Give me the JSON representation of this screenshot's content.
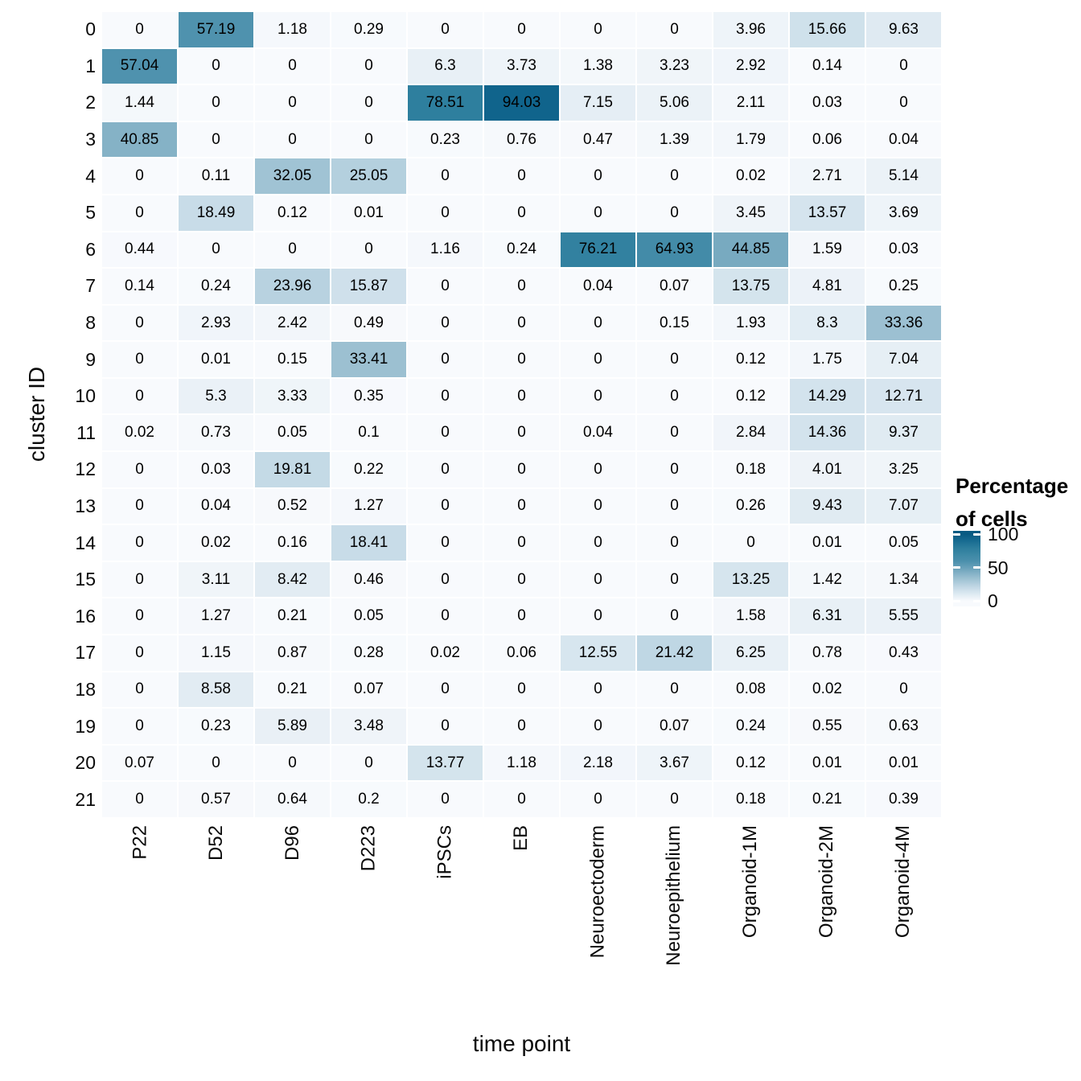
{
  "legend": {
    "title_lines": [
      "Percentage",
      "of cells"
    ],
    "tick_labels": [
      "100",
      "50",
      "0"
    ]
  },
  "chart_data": {
    "type": "heatmap",
    "title": "",
    "xlabel": "time point",
    "ylabel": "cluster ID",
    "legend_title": "Percentage of cells",
    "legend_position": "right",
    "legend_ticks": [
      100,
      50,
      0
    ],
    "value_range": [
      0,
      100
    ],
    "grid_gap_color": "#ffffff",
    "text_color": "#000000",
    "color_stops": [
      {
        "value": 0,
        "color": "#f8fafd"
      },
      {
        "value": 18.5,
        "color": "#c8dce8"
      },
      {
        "value": 41,
        "color": "#85b2c6"
      },
      {
        "value": 57,
        "color": "#4f92ae"
      },
      {
        "value": 78.5,
        "color": "#2e7f9e"
      },
      {
        "value": 94,
        "color": "#10648c"
      },
      {
        "value": 100,
        "color": "#085a82"
      }
    ],
    "x": [
      "P22",
      "D52",
      "D96",
      "D223",
      "iPSCs",
      "EB",
      "Neuroectoderm",
      "Neuroepithelium",
      "Organoid-1M",
      "Organoid-2M",
      "Organoid-4M"
    ],
    "y": [
      "0",
      "1",
      "2",
      "3",
      "4",
      "5",
      "6",
      "7",
      "8",
      "9",
      "10",
      "11",
      "12",
      "13",
      "14",
      "15",
      "16",
      "17",
      "18",
      "19",
      "20",
      "21"
    ],
    "values": [
      [
        0,
        57.19,
        1.18,
        0.29,
        0,
        0,
        0,
        0,
        3.96,
        15.66,
        9.63
      ],
      [
        57.04,
        0,
        0,
        0,
        6.3,
        3.73,
        1.38,
        3.23,
        2.92,
        0.14,
        0
      ],
      [
        1.44,
        0,
        0,
        0,
        78.51,
        94.03,
        7.15,
        5.06,
        2.11,
        0.03,
        0
      ],
      [
        40.85,
        0,
        0,
        0,
        0.23,
        0.76,
        0.47,
        1.39,
        1.79,
        0.06,
        0.04
      ],
      [
        0,
        0.11,
        32.05,
        25.05,
        0,
        0,
        0,
        0,
        0.02,
        2.71,
        5.14
      ],
      [
        0,
        18.49,
        0.12,
        0.01,
        0,
        0,
        0,
        0,
        3.45,
        13.57,
        3.69
      ],
      [
        0.44,
        0,
        0,
        0,
        1.16,
        0.24,
        76.21,
        64.93,
        44.85,
        1.59,
        0.03
      ],
      [
        0.14,
        0.24,
        23.96,
        15.87,
        0,
        0,
        0.04,
        0.07,
        13.75,
        4.81,
        0.25
      ],
      [
        0,
        2.93,
        2.42,
        0.49,
        0,
        0,
        0,
        0.15,
        1.93,
        8.3,
        33.36
      ],
      [
        0,
        0.01,
        0.15,
        33.41,
        0,
        0,
        0,
        0,
        0.12,
        1.75,
        7.04
      ],
      [
        0,
        5.3,
        3.33,
        0.35,
        0,
        0,
        0,
        0,
        0.12,
        14.29,
        12.71
      ],
      [
        0.02,
        0.73,
        0.05,
        0.1,
        0,
        0,
        0.04,
        0,
        2.84,
        14.36,
        9.37
      ],
      [
        0,
        0.03,
        19.81,
        0.22,
        0,
        0,
        0,
        0,
        0.18,
        4.01,
        3.25
      ],
      [
        0,
        0.04,
        0.52,
        1.27,
        0,
        0,
        0,
        0,
        0.26,
        9.43,
        7.07
      ],
      [
        0,
        0.02,
        0.16,
        18.41,
        0,
        0,
        0,
        0,
        0,
        0.01,
        0.05
      ],
      [
        0,
        3.11,
        8.42,
        0.46,
        0,
        0,
        0,
        0,
        13.25,
        1.42,
        1.34
      ],
      [
        0,
        1.27,
        0.21,
        0.05,
        0,
        0,
        0,
        0,
        1.58,
        6.31,
        5.55
      ],
      [
        0,
        1.15,
        0.87,
        0.28,
        0.02,
        0.06,
        12.55,
        21.42,
        6.25,
        0.78,
        0.43
      ],
      [
        0,
        8.58,
        0.21,
        0.07,
        0,
        0,
        0,
        0,
        0.08,
        0.02,
        0
      ],
      [
        0,
        0.23,
        5.89,
        3.48,
        0,
        0,
        0,
        0.07,
        0.24,
        0.55,
        0.63
      ],
      [
        0.07,
        0,
        0,
        0,
        13.77,
        1.18,
        2.18,
        3.67,
        0.12,
        0.01,
        0.01
      ],
      [
        0,
        0.57,
        0.64,
        0.2,
        0,
        0,
        0,
        0,
        0.18,
        0.21,
        0.39
      ]
    ]
  }
}
